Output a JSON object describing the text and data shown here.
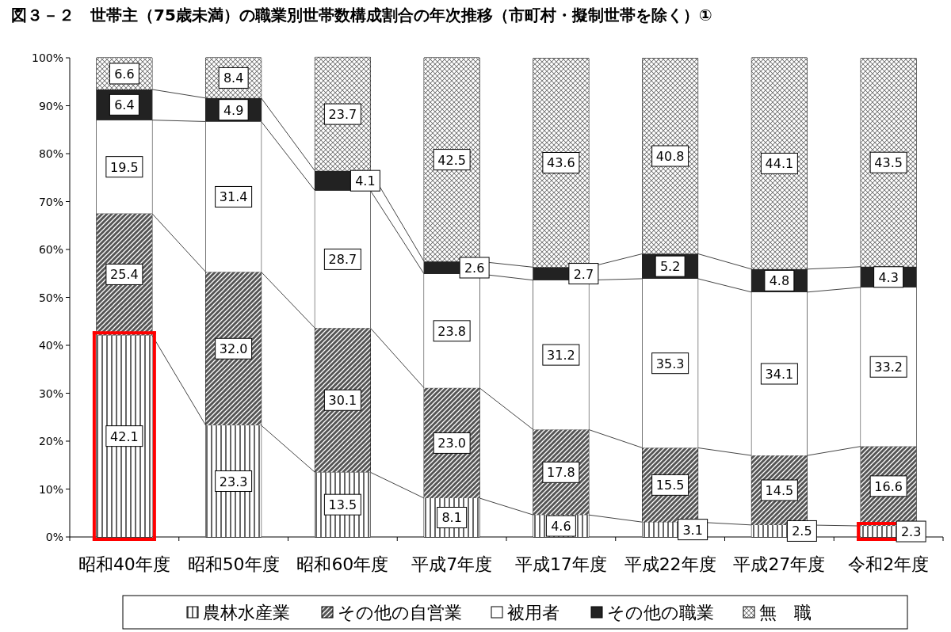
{
  "chart_data": {
    "type": "bar",
    "title": "図３－２　世帯主（75歳未満）の職業別世帯数構成割合の年次推移（市町村・擬制世帯を除く）①",
    "categories": [
      "昭和40年度",
      "昭和50年度",
      "昭和60年度",
      "平成7年度",
      "平成17年度",
      "平成22年度",
      "平成27年度",
      "令和2年度"
    ],
    "stacked": true,
    "legend": "bottom",
    "ylim": [
      0,
      100
    ],
    "yticks": [
      {
        "value": 0,
        "label": "0%"
      },
      {
        "value": 10,
        "label": "10%"
      },
      {
        "value": 20,
        "label": "20%"
      },
      {
        "value": 30,
        "label": "30%"
      },
      {
        "value": 40,
        "label": "40%"
      },
      {
        "value": 50,
        "label": "50%"
      },
      {
        "value": 60,
        "label": "60%"
      },
      {
        "value": 70,
        "label": "70%"
      },
      {
        "value": 80,
        "label": "80%"
      },
      {
        "value": 90,
        "label": "90%"
      },
      {
        "value": 100,
        "label": "100%"
      }
    ],
    "series": [
      {
        "name": "農林水産業",
        "color": "#ffffff",
        "values": [
          42.1,
          23.3,
          13.5,
          8.1,
          4.6,
          3.1,
          2.5,
          2.3
        ],
        "value_labels": [
          "42.1",
          "23.3",
          "13.5",
          "8.1",
          "4.6",
          "3.1",
          "2.5",
          "2.3"
        ]
      },
      {
        "name": "その他の自営業",
        "color": "#555555",
        "values": [
          25.4,
          32.0,
          30.1,
          23.0,
          17.8,
          15.5,
          14.5,
          16.6
        ],
        "value_labels": [
          "25.4",
          "32.0",
          "30.1",
          "23.0",
          "17.8",
          "15.5",
          "14.5",
          "16.6"
        ]
      },
      {
        "name": "被用者",
        "color": "#ffffff",
        "values": [
          19.5,
          31.4,
          28.7,
          23.8,
          31.2,
          35.3,
          34.1,
          33.2
        ],
        "value_labels": [
          "19.5",
          "31.4",
          "28.7",
          "23.8",
          "31.2",
          "35.3",
          "34.1",
          "33.2"
        ]
      },
      {
        "name": "その他の職業",
        "color": "#222222",
        "values": [
          6.4,
          4.9,
          4.1,
          2.6,
          2.7,
          5.2,
          4.8,
          4.3
        ],
        "value_labels": [
          "6.4",
          "4.9",
          "4.1",
          "2.6",
          "2.7",
          "5.2",
          "4.8",
          "4.3"
        ]
      },
      {
        "name": "無　職",
        "color": "#bbbbbb",
        "values": [
          6.6,
          8.4,
          23.7,
          42.5,
          43.6,
          40.8,
          44.1,
          43.5
        ],
        "value_labels": [
          "6.6",
          "8.4",
          "23.7",
          "42.5",
          "43.6",
          "40.8",
          "44.1",
          "43.5"
        ]
      }
    ]
  }
}
